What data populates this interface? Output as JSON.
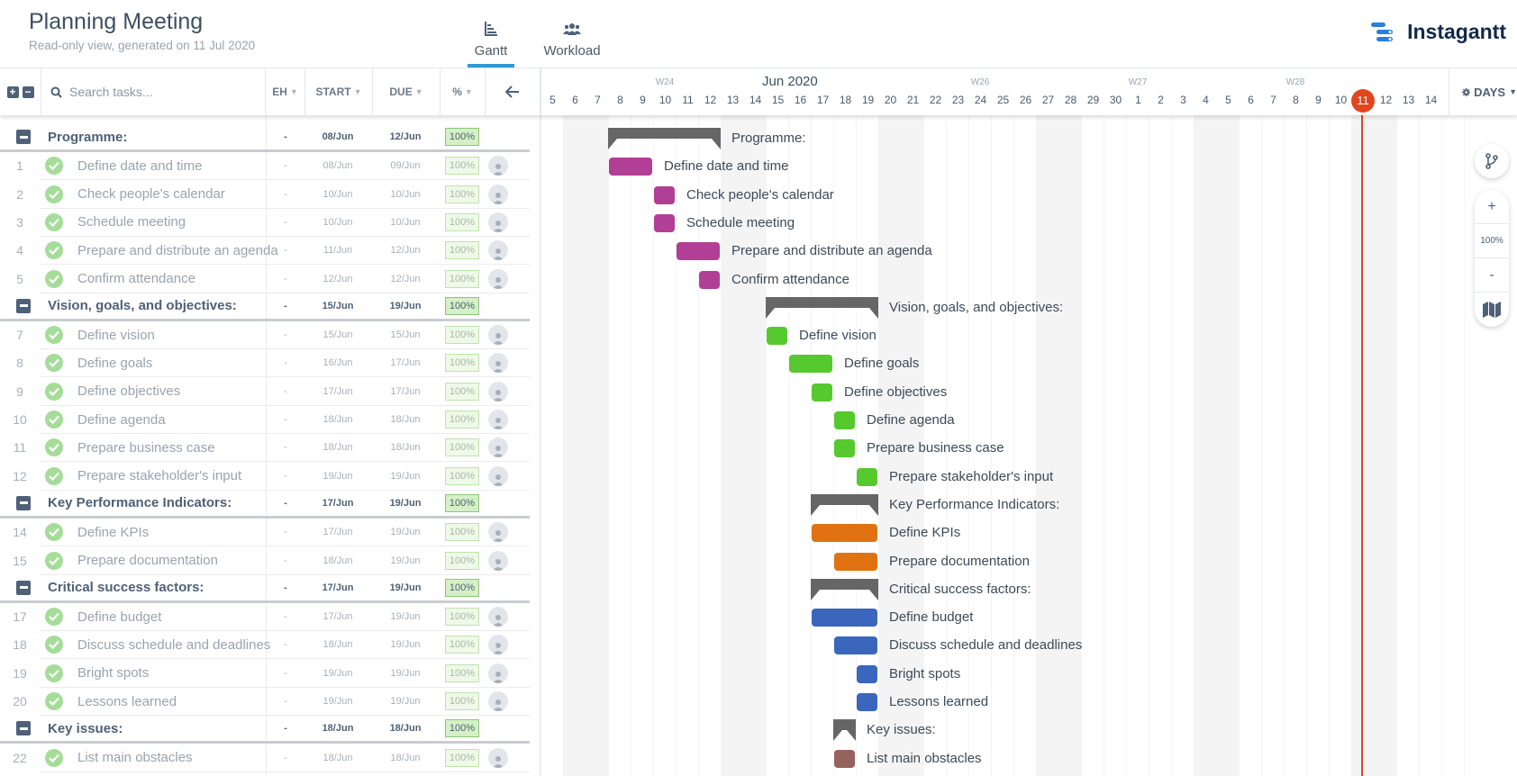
{
  "header": {
    "title": "Planning Meeting",
    "subtitle": "Read-only view, generated on 11 Jul 2020",
    "tabs": [
      {
        "label": "Gantt",
        "icon": "gantt-icon",
        "active": true
      },
      {
        "label": "Workload",
        "icon": "users-icon",
        "active": false
      }
    ],
    "logo_text": "Instagantt"
  },
  "toolbar": {
    "search_placeholder": "Search tasks...",
    "columns": {
      "eh": "EH",
      "start": "START",
      "due": "DUE",
      "pct": "%"
    },
    "collapse_icon": "arrow-left-icon",
    "scale_label": "DAYS"
  },
  "timeline": {
    "month_label": "Jun 2020",
    "weeks": [
      {
        "label": "W24",
        "day_index": 5
      },
      {
        "label": "W26",
        "day_index": 19
      },
      {
        "label": "W27",
        "day_index": 26
      },
      {
        "label": "W28",
        "day_index": 33
      }
    ],
    "days": [
      "5",
      "6",
      "7",
      "8",
      "9",
      "10",
      "11",
      "12",
      "13",
      "14",
      "15",
      "16",
      "17",
      "18",
      "19",
      "20",
      "21",
      "22",
      "23",
      "24",
      "25",
      "26",
      "27",
      "28",
      "29",
      "30",
      "1",
      "2",
      "3",
      "4",
      "5",
      "6",
      "7",
      "8",
      "9",
      "10",
      "11",
      "12",
      "13",
      "14"
    ],
    "today_label": "11",
    "today_index": 36
  },
  "zoom_controls": {
    "plus": "+",
    "value": "100%",
    "minus": "-"
  },
  "rows": [
    {
      "type": "group",
      "name": "Programme:",
      "eh": "-",
      "start": "08/Jun",
      "due": "12/Jun",
      "pct": "100%",
      "bar_start": 3,
      "bar_len": 5
    },
    {
      "type": "task",
      "num": "1",
      "name": "Define date and time",
      "eh": "-",
      "start": "08/Jun",
      "due": "09/Jun",
      "pct": "100%",
      "bar_start": 3,
      "bar_len": 2,
      "color": "#b03f95"
    },
    {
      "type": "task",
      "num": "2",
      "name": "Check people's calendar",
      "eh": "-",
      "start": "10/Jun",
      "due": "10/Jun",
      "pct": "100%",
      "bar_start": 5,
      "bar_len": 1,
      "color": "#b03f95"
    },
    {
      "type": "task",
      "num": "3",
      "name": "Schedule meeting",
      "eh": "-",
      "start": "10/Jun",
      "due": "10/Jun",
      "pct": "100%",
      "bar_start": 5,
      "bar_len": 1,
      "color": "#b03f95"
    },
    {
      "type": "task",
      "num": "4",
      "name": "Prepare and distribute an agenda",
      "eh": "-",
      "start": "11/Jun",
      "due": "12/Jun",
      "pct": "100%",
      "bar_start": 6,
      "bar_len": 2,
      "color": "#b03f95"
    },
    {
      "type": "task",
      "num": "5",
      "name": "Confirm attendance",
      "eh": "-",
      "start": "12/Jun",
      "due": "12/Jun",
      "pct": "100%",
      "bar_start": 7,
      "bar_len": 1,
      "color": "#b03f95"
    },
    {
      "type": "group",
      "name": "Vision, goals, and objectives:",
      "eh": "-",
      "start": "15/Jun",
      "due": "19/Jun",
      "pct": "100%",
      "bar_start": 10,
      "bar_len": 5
    },
    {
      "type": "task",
      "num": "7",
      "name": "Define vision",
      "eh": "-",
      "start": "15/Jun",
      "due": "15/Jun",
      "pct": "100%",
      "bar_start": 10,
      "bar_len": 1,
      "color": "#56c92e"
    },
    {
      "type": "task",
      "num": "8",
      "name": "Define goals",
      "eh": "-",
      "start": "16/Jun",
      "due": "17/Jun",
      "pct": "100%",
      "bar_start": 11,
      "bar_len": 2,
      "color": "#56c92e"
    },
    {
      "type": "task",
      "num": "9",
      "name": "Define objectives",
      "eh": "-",
      "start": "17/Jun",
      "due": "17/Jun",
      "pct": "100%",
      "bar_start": 12,
      "bar_len": 1,
      "color": "#56c92e"
    },
    {
      "type": "task",
      "num": "10",
      "name": "Define agenda",
      "eh": "-",
      "start": "18/Jun",
      "due": "18/Jun",
      "pct": "100%",
      "bar_start": 13,
      "bar_len": 1,
      "color": "#56c92e"
    },
    {
      "type": "task",
      "num": "11",
      "name": "Prepare business case",
      "eh": "-",
      "start": "18/Jun",
      "due": "18/Jun",
      "pct": "100%",
      "bar_start": 13,
      "bar_len": 1,
      "color": "#56c92e"
    },
    {
      "type": "task",
      "num": "12",
      "name": "Prepare stakeholder's input",
      "eh": "-",
      "start": "19/Jun",
      "due": "19/Jun",
      "pct": "100%",
      "bar_start": 14,
      "bar_len": 1,
      "color": "#56c92e"
    },
    {
      "type": "group",
      "name": "Key Performance Indicators:",
      "eh": "-",
      "start": "17/Jun",
      "due": "19/Jun",
      "pct": "100%",
      "bar_start": 12,
      "bar_len": 3
    },
    {
      "type": "task",
      "num": "14",
      "name": "Define KPIs",
      "eh": "-",
      "start": "17/Jun",
      "due": "19/Jun",
      "pct": "100%",
      "bar_start": 12,
      "bar_len": 3,
      "color": "#e07211"
    },
    {
      "type": "task",
      "num": "15",
      "name": "Prepare documentation",
      "eh": "-",
      "start": "18/Jun",
      "due": "19/Jun",
      "pct": "100%",
      "bar_start": 13,
      "bar_len": 2,
      "color": "#e07211"
    },
    {
      "type": "group",
      "name": "Critical success factors:",
      "eh": "-",
      "start": "17/Jun",
      "due": "19/Jun",
      "pct": "100%",
      "bar_start": 12,
      "bar_len": 3
    },
    {
      "type": "task",
      "num": "17",
      "name": "Define budget",
      "eh": "-",
      "start": "17/Jun",
      "due": "19/Jun",
      "pct": "100%",
      "bar_start": 12,
      "bar_len": 3,
      "color": "#3a66be"
    },
    {
      "type": "task",
      "num": "18",
      "name": "Discuss schedule and deadlines",
      "eh": "-",
      "start": "18/Jun",
      "due": "19/Jun",
      "pct": "100%",
      "bar_start": 13,
      "bar_len": 2,
      "color": "#3a66be"
    },
    {
      "type": "task",
      "num": "19",
      "name": "Bright spots",
      "eh": "-",
      "start": "19/Jun",
      "due": "19/Jun",
      "pct": "100%",
      "bar_start": 14,
      "bar_len": 1,
      "color": "#3a66be"
    },
    {
      "type": "task",
      "num": "20",
      "name": "Lessons learned",
      "eh": "-",
      "start": "19/Jun",
      "due": "19/Jun",
      "pct": "100%",
      "bar_start": 14,
      "bar_len": 1,
      "color": "#3a66be"
    },
    {
      "type": "group",
      "name": "Key issues:",
      "eh": "-",
      "start": "18/Jun",
      "due": "18/Jun",
      "pct": "100%",
      "bar_start": 13,
      "bar_len": 1
    },
    {
      "type": "task",
      "num": "22",
      "name": "List main obstacles",
      "eh": "-",
      "start": "18/Jun",
      "due": "18/Jun",
      "pct": "100%",
      "bar_start": 13,
      "bar_len": 1,
      "color": "#96625e"
    }
  ],
  "colors": {
    "accent": "#2f9bd6",
    "today": "#e2461e",
    "summary_bar": "#666666",
    "group_programme": "#b03f95",
    "group_vision": "#56c92e",
    "group_kpi": "#e07211",
    "group_csf": "#3a66be",
    "group_issues": "#96625e"
  }
}
